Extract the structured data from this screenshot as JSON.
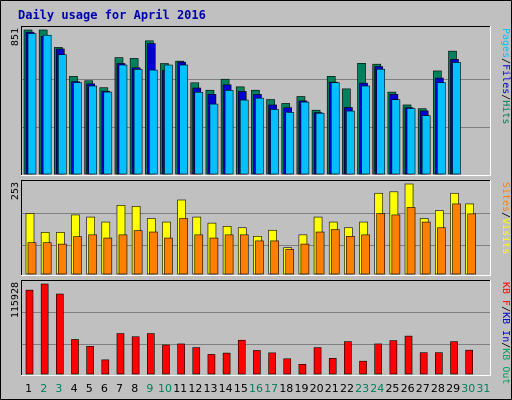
{
  "colors": {
    "background": "#c0c0c0",
    "title": "#0000b0",
    "hits": "#00805c",
    "files": "#0000d0",
    "pages": "#00c0ff",
    "visits": "#ffff00",
    "sites": "#ff8000",
    "kb_in": "#0000c0",
    "kb_out": "#00a060",
    "kb_f": "#ff0000",
    "weekend_day": "#00805c",
    "weekday": "#000000"
  },
  "chart_data": {
    "type": "bar",
    "title": "Daily usage for April 2016",
    "x": [
      "1",
      "2",
      "3",
      "4",
      "5",
      "6",
      "7",
      "8",
      "9",
      "10",
      "11",
      "12",
      "13",
      "14",
      "15",
      "16",
      "17",
      "18",
      "19",
      "20",
      "21",
      "22",
      "23",
      "24",
      "25",
      "26",
      "27",
      "28",
      "29",
      "30",
      "31"
    ],
    "weekend_days": [
      "2",
      "3",
      "9",
      "10",
      "16",
      "17",
      "23",
      "24",
      "30",
      "31"
    ],
    "panels": [
      {
        "id": "top",
        "ymax_label": "851",
        "ylim": [
          0,
          851
        ],
        "legend": [
          "Pages",
          "/",
          "Files",
          "/",
          "Hits"
        ],
        "series": [
          {
            "name": "Hits",
            "values": [
              851,
              851,
              748,
              577,
              551,
              510,
              688,
              683,
              787,
              653,
              667,
              539,
              495,
              560,
              515,
              495,
              440,
              417,
              458,
              377,
              577,
              503,
              654,
              649,
              484,
              408,
              386,
              609,
              726,
              null,
              null
            ]
          },
          {
            "name": "Files",
            "values": [
              838,
              813,
              739,
              546,
              533,
              489,
              653,
              628,
              771,
              613,
              661,
              508,
              471,
              527,
              488,
              470,
              408,
              392,
              432,
              363,
              543,
              393,
              537,
              635,
              471,
              392,
              373,
              567,
              677,
              null,
              null
            ]
          },
          {
            "name": "Pages",
            "values": [
              830,
              820,
              705,
              540,
              520,
              484,
              644,
              618,
              614,
              644,
              644,
              483,
              413,
              494,
              437,
              448,
              381,
              364,
              425,
              359,
              540,
              372,
              520,
              619,
              439,
              387,
              345,
              540,
              659,
              null,
              null
            ]
          }
        ]
      },
      {
        "id": "middle",
        "ymax_label": "253",
        "ylim": [
          0,
          253
        ],
        "legend": [
          "Sites",
          "/",
          "Visits"
        ],
        "series": [
          {
            "name": "Visits",
            "values": [
              170,
              117,
              117,
              166,
              160,
              146,
              193,
              190,
              156,
              146,
              208,
              160,
              143,
              134,
              130,
              106,
              123,
              74,
              110,
              160,
              146,
              130,
              146,
              227,
              231,
              253,
              156,
              178,
              227,
              197,
              null
            ]
          },
          {
            "name": "Sites",
            "values": [
              88,
              88,
              84,
              105,
              110,
              101,
              110,
              122,
              118,
              101,
              156,
              110,
              101,
              110,
              110,
              93,
              93,
              69,
              84,
              118,
              125,
              106,
              110,
              170,
              166,
              187,
              146,
              130,
              197,
              169,
              null
            ]
          }
        ]
      },
      {
        "id": "bottom",
        "ymax_label": "115928",
        "ylim": [
          0,
          115928
        ],
        "legend": [
          "KB F",
          "/",
          "KB In",
          "/",
          "KB Out"
        ],
        "series": [
          {
            "name": "KB F",
            "values": [
              108000,
              115928,
              103000,
              44500,
              35600,
              18200,
              52100,
              48000,
              52100,
              37400,
              38700,
              34000,
              25200,
              26900,
              43500,
              30300,
              27200,
              19600,
              12500,
              34000,
              20200,
              41700,
              16500,
              38700,
              43000,
              48800,
              27500,
              27500,
              41700,
              30700,
              null
            ]
          }
        ]
      }
    ]
  }
}
